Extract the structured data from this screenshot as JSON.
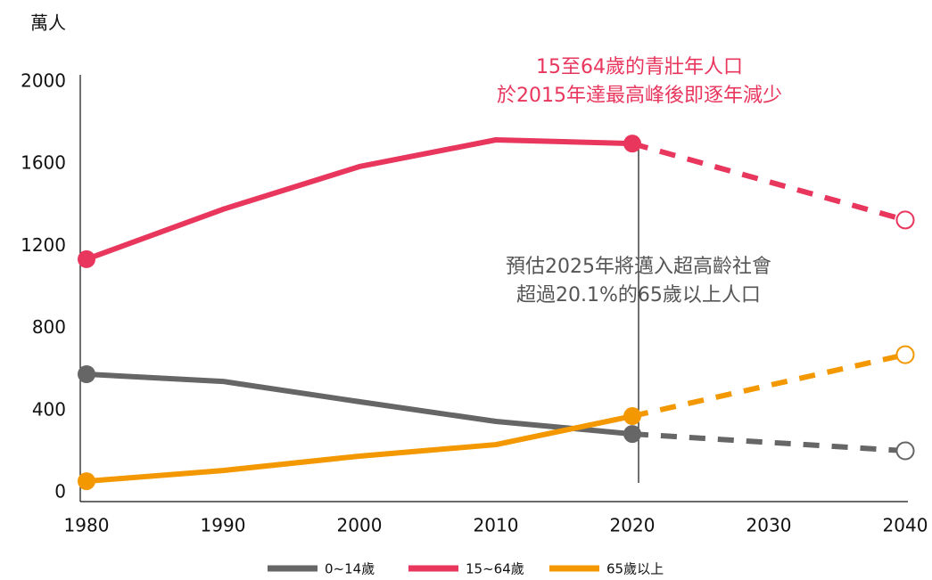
{
  "chart_data": {
    "type": "line",
    "y_label": "萬人",
    "x": [
      1980,
      1990,
      2000,
      2010,
      2020,
      2040
    ],
    "xlim": [
      1980,
      2040
    ],
    "xticks": [
      1980,
      1990,
      2000,
      2010,
      2020,
      2030,
      2040
    ],
    "ylim": [
      0,
      2000
    ],
    "yticks": [
      0,
      400,
      800,
      1200,
      1600,
      2000
    ],
    "projection_start": 2020,
    "series": [
      {
        "name": "0~14歲",
        "color": "#666666",
        "values": [
          577,
          542,
          443,
          347,
          286,
          204
        ]
      },
      {
        "name": "15~64歲",
        "color": "#e8365d",
        "values": [
          1137,
          1380,
          1588,
          1718,
          1700,
          1328
        ]
      },
      {
        "name": "65歲以上",
        "color": "#f39800",
        "values": [
          56,
          108,
          178,
          234,
          373,
          672
        ]
      }
    ],
    "annotations": [
      {
        "lines": [
          "15至64歲的青壯年人口",
          "於2015年達最高峰後即逐年減少"
        ],
        "color": "#e8365d"
      },
      {
        "lines": [
          "預估2025年將邁入超高齡社會",
          "超過20.1%的65歲以上人口"
        ],
        "color": "#555555"
      }
    ]
  }
}
